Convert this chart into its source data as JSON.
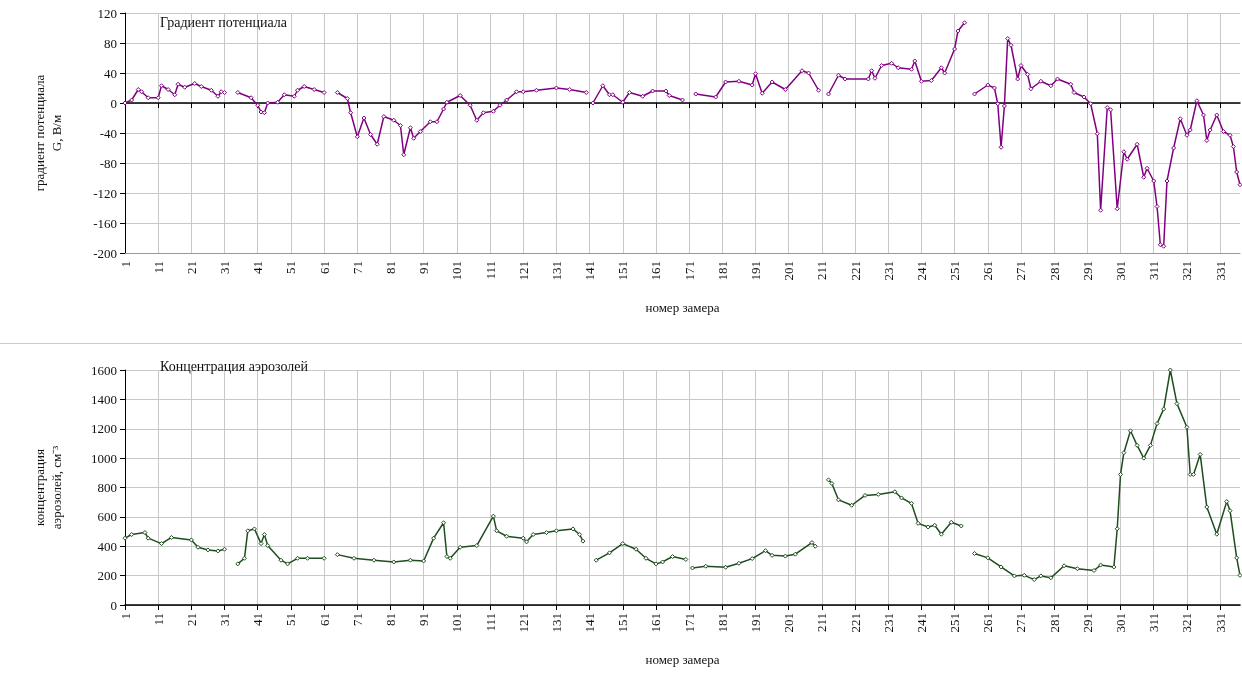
{
  "chart_data": [
    {
      "type": "line",
      "title": "Градиент потенциала",
      "xlabel": "номер замера",
      "ylabel": "градиент потенциала\nG, В/м",
      "xlim": [
        1,
        337
      ],
      "xticks": [
        1,
        11,
        21,
        31,
        41,
        51,
        61,
        71,
        81,
        91,
        101,
        111,
        121,
        131,
        141,
        151,
        161,
        171,
        181,
        191,
        201,
        211,
        221,
        231,
        241,
        251,
        261,
        271,
        281,
        291,
        301,
        311,
        321,
        331
      ],
      "ylim": [
        -200,
        120
      ],
      "yticks": [
        -200,
        -160,
        -120,
        -80,
        -40,
        0,
        40,
        80,
        120
      ],
      "grid": true,
      "marker": "diamond",
      "series": [
        {
          "color": "#800080",
          "x": [
            1,
            3,
            5,
            6,
            8,
            11,
            12,
            14,
            16,
            17,
            19,
            22,
            24,
            27,
            29,
            30,
            31,
            33,
            35,
            39,
            41,
            42,
            43,
            44,
            47,
            49,
            52,
            53,
            55,
            58,
            61,
            63,
            65,
            68,
            69,
            71,
            73,
            75,
            77,
            79,
            82,
            84,
            85,
            87,
            88,
            90,
            93,
            95,
            97,
            98,
            102,
            105,
            107,
            109,
            112,
            114,
            116,
            119,
            121,
            125,
            131,
            135,
            140,
            141,
            142,
            145,
            147,
            148,
            151,
            153,
            157,
            160,
            164,
            165,
            169,
            171,
            173,
            179,
            182,
            186,
            190,
            191,
            193,
            196,
            200,
            205,
            207,
            210,
            212,
            213,
            216,
            218,
            225,
            226,
            227,
            229,
            232,
            234,
            238,
            239,
            241,
            244,
            247,
            248,
            251,
            252,
            254,
            255,
            257,
            261,
            263,
            264,
            265,
            266,
            267,
            268,
            270,
            271,
            273,
            274,
            277,
            280,
            282,
            286,
            287,
            290,
            292,
            294,
            295,
            297,
            298,
            300,
            302,
            303,
            306,
            308,
            309,
            311,
            312,
            313,
            314,
            315,
            317,
            319,
            321,
            322,
            324,
            326,
            327,
            328,
            330,
            332,
            334,
            335,
            336,
            337
          ],
          "values": [
            0,
            4,
            18,
            15,
            7,
            7,
            23,
            18,
            11,
            25,
            21,
            26,
            22,
            17,
            9,
            15,
            14,
            null,
            14,
            7,
            -3,
            -12,
            -13,
            0,
            1,
            11,
            9,
            17,
            22,
            18,
            14,
            null,
            14,
            6,
            -13,
            -45,
            -20,
            -42,
            -55,
            -18,
            -23,
            -30,
            -69,
            -33,
            -47,
            -38,
            -25,
            -25,
            -8,
            1,
            10,
            -3,
            -23,
            -13,
            -11,
            -3,
            4,
            15,
            15,
            17,
            20,
            18,
            14,
            null,
            0,
            23,
            11,
            11,
            1,
            14,
            9,
            16,
            16,
            10,
            4,
            null,
            12,
            8,
            28,
            29,
            24,
            39,
            13,
            28,
            18,
            43,
            40,
            17,
            null,
            12,
            37,
            32,
            32,
            43,
            33,
            50,
            53,
            47,
            45,
            56,
            29,
            30,
            47,
            40,
            72,
            96,
            107,
            null,
            12,
            24,
            20,
            -1,
            -59,
            -4,
            86,
            77,
            32,
            50,
            38,
            19,
            29,
            23,
            32,
            25,
            14,
            8,
            -1,
            -41,
            -143,
            -6,
            -9,
            -141,
            -65,
            -75,
            -55,
            -99,
            -87,
            -104,
            -138,
            -189,
            -191,
            -104,
            -60,
            -21,
            -43,
            -36,
            3,
            -16,
            -50,
            -36,
            -16,
            -38,
            -43,
            -58,
            -92,
            -109
          ]
        }
      ]
    },
    {
      "type": "line",
      "title": "Концентрация аэрозолей",
      "xlabel": "номер замера",
      "ylabel": "концентрация\nаэрозолей, см⁻³",
      "xlim": [
        1,
        337
      ],
      "xticks": [
        1,
        11,
        21,
        31,
        41,
        51,
        61,
        71,
        81,
        91,
        101,
        111,
        121,
        131,
        141,
        151,
        161,
        171,
        181,
        191,
        201,
        211,
        221,
        231,
        241,
        251,
        261,
        271,
        281,
        291,
        301,
        311,
        321,
        331
      ],
      "ylim": [
        0,
        1600
      ],
      "yticks": [
        0,
        200,
        400,
        600,
        800,
        1000,
        1200,
        1400,
        1600
      ],
      "grid": true,
      "marker": "diamond",
      "series": [
        {
          "color": "#1e4d1e",
          "x": [
            1,
            3,
            7,
            8,
            12,
            15,
            21,
            23,
            26,
            29,
            31,
            33,
            35,
            37,
            38,
            40,
            42,
            43,
            44,
            48,
            50,
            53,
            56,
            61,
            63,
            65,
            70,
            76,
            82,
            87,
            91,
            94,
            97,
            98,
            99,
            102,
            107,
            112,
            113,
            116,
            121,
            122,
            124,
            128,
            131,
            136,
            138,
            139,
            141,
            143,
            147,
            151,
            155,
            158,
            161,
            163,
            166,
            170,
            171,
            172,
            176,
            182,
            186,
            190,
            194,
            196,
            200,
            203,
            208,
            209,
            211,
            213,
            214,
            216,
            220,
            224,
            228,
            233,
            235,
            238,
            240,
            243,
            245,
            247,
            250,
            253,
            255,
            257,
            261,
            265,
            269,
            272,
            275,
            277,
            280,
            284,
            288,
            293,
            295,
            299,
            300,
            301,
            302,
            304,
            306,
            308,
            310,
            312,
            314,
            316,
            318,
            321,
            322,
            323,
            325,
            327,
            330,
            333,
            334,
            336,
            337
          ],
          "values": [
            455,
            480,
            493,
            455,
            418,
            460,
            443,
            393,
            375,
            368,
            380,
            null,
            280,
            318,
            505,
            518,
            418,
            480,
            405,
            305,
            280,
            318,
            318,
            318,
            null,
            343,
            318,
            305,
            293,
            305,
            300,
            455,
            560,
            330,
            318,
            393,
            405,
            605,
            505,
            468,
            455,
            430,
            480,
            493,
            505,
            518,
            480,
            435,
            null,
            305,
            355,
            418,
            380,
            318,
            280,
            293,
            330,
            310,
            null,
            252,
            264,
            257,
            284,
            316,
            370,
            338,
            333,
            346,
            425,
            400,
            null,
            852,
            827,
            716,
            679,
            746,
            753,
            771,
            729,
            692,
            556,
            531,
            543,
            482,
            563,
            538,
            null,
            351,
            321,
            259,
            198,
            202,
            173,
            198,
            185,
            267,
            247,
            235,
            272,
            259,
            519,
            889,
            1037,
            1186,
            1087,
            1000,
            1087,
            1235,
            1334,
            1600,
            1371,
            1210,
            889,
            889,
            1025,
            667,
            482,
            704,
            642,
            321,
            202
          ]
        }
      ]
    }
  ]
}
